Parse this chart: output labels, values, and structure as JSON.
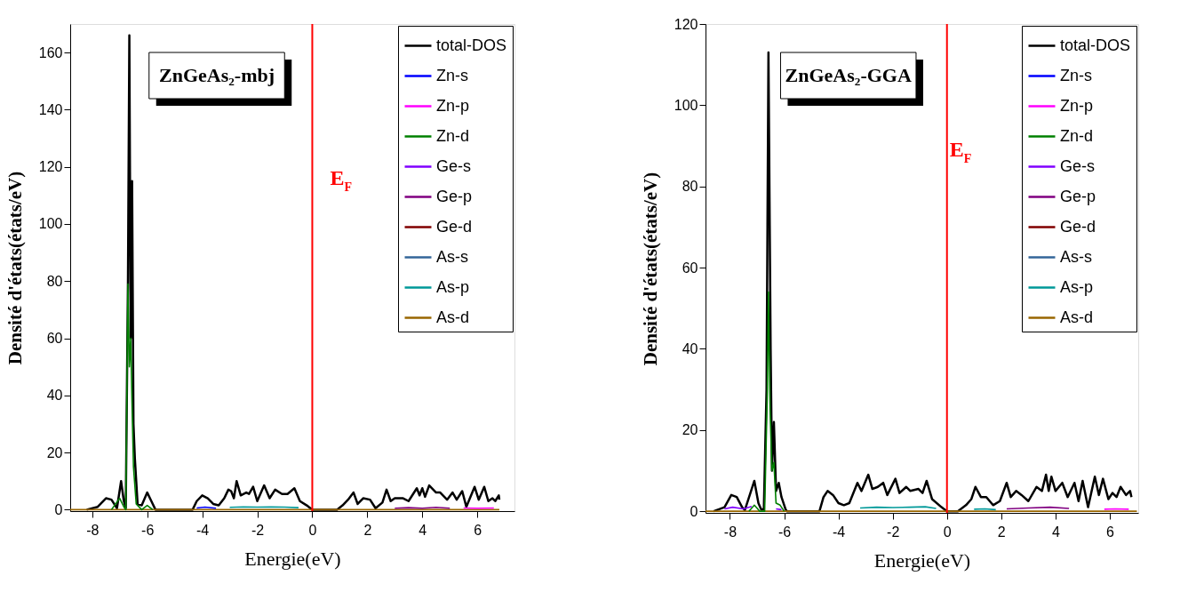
{
  "chart_data": [
    {
      "type": "line",
      "title": "ZnGeAs₂-mbj",
      "xlabel": "Energie(eV)",
      "ylabel": "Densité d'états(états/eV)",
      "xlim": [
        -8.8,
        7.35
      ],
      "ylim": [
        -0.5,
        170
      ],
      "xticks": [
        -8,
        -6,
        -4,
        -2,
        0,
        2,
        4,
        6
      ],
      "yticks": [
        0,
        20,
        40,
        60,
        80,
        100,
        120,
        140,
        160
      ],
      "grid": false,
      "legend": "top right",
      "line_style": "solid",
      "ref_lines": [
        {
          "axis": "x",
          "value": 0,
          "color": "#ff0000"
        }
      ],
      "annotations": [
        "E$_{F}$"
      ],
      "series": [
        {
          "name": "total-DOS",
          "color": "#000000",
          "x": [
            -8.2,
            -7.8,
            -7.5,
            -7.3,
            -7.1,
            -6.95,
            -6.85,
            -6.78,
            -6.7,
            -6.65,
            -6.6,
            -6.55,
            -6.5,
            -6.45,
            -6.35,
            -6.2,
            -6.0,
            -5.85,
            -5.7,
            -4.35,
            -4.2,
            -4.0,
            -3.8,
            -3.6,
            -3.4,
            -3.2,
            -3.05,
            -2.95,
            -2.85,
            -2.75,
            -2.6,
            -2.4,
            -2.3,
            -2.15,
            -2.0,
            -1.75,
            -1.55,
            -1.35,
            -1.1,
            -0.9,
            -0.65,
            -0.45,
            -0.2,
            0,
            0.9,
            1.1,
            1.3,
            1.5,
            1.65,
            1.85,
            2.1,
            2.3,
            2.55,
            2.7,
            2.85,
            3.0,
            3.3,
            3.5,
            3.8,
            3.9,
            4.0,
            4.1,
            4.25,
            4.5,
            4.65,
            4.9,
            5.1,
            5.25,
            5.45,
            5.6,
            5.9,
            6.05,
            6.25,
            6.4,
            6.55,
            6.65,
            6.78,
            6.8
          ],
          "values": [
            0,
            1,
            4,
            3.5,
            0.5,
            10,
            3,
            0.5,
            80,
            166,
            60,
            115,
            30,
            18,
            2,
            1.5,
            6,
            3,
            0,
            0,
            3,
            5,
            4,
            2,
            1.5,
            4,
            7,
            6.5,
            4,
            10,
            5,
            6,
            5.5,
            8,
            3,
            8.5,
            4,
            7,
            5.5,
            5.5,
            7.5,
            3,
            1.5,
            0,
            0,
            1.5,
            3.5,
            6,
            2,
            4,
            3.5,
            0.5,
            2.5,
            7,
            3,
            4,
            4,
            3,
            7.5,
            5,
            7.5,
            4.5,
            8.5,
            6,
            6,
            3.5,
            6,
            3.5,
            6.5,
            1,
            8,
            3.5,
            8,
            3,
            4,
            3,
            5,
            3.5
          ]
        },
        {
          "name": "Zn-s",
          "color": "#0000ff",
          "x": [
            -4.2,
            -3.9,
            -3.5
          ],
          "values": [
            0.6,
            0.9,
            0.5
          ]
        },
        {
          "name": "Zn-p",
          "color": "#ff00ff",
          "x": [
            5.5,
            6.0,
            6.6
          ],
          "values": [
            0.6,
            0.5,
            0.6
          ]
        },
        {
          "name": "Zn-d",
          "color": "#008000",
          "x": [
            -7.3,
            -7.0,
            -6.85,
            -6.78,
            -6.7,
            -6.65,
            -6.6,
            -6.55,
            -6.5,
            -6.4,
            -6.2,
            -6.0,
            -5.8
          ],
          "values": [
            0,
            4,
            1,
            0,
            79,
            50,
            60,
            36,
            15,
            2,
            0,
            1.5,
            0
          ]
        },
        {
          "name": "Ge-s",
          "color": "#8000ff"
        },
        {
          "name": "Ge-p",
          "color": "#800080",
          "x": [
            3,
            3.5,
            4,
            4.5,
            5
          ],
          "values": [
            0.5,
            0.7,
            0.5,
            0.8,
            0.5
          ]
        },
        {
          "name": "Ge-d",
          "color": "#800000"
        },
        {
          "name": "As-s",
          "color": "#336699"
        },
        {
          "name": "As-p",
          "color": "#009999",
          "x": [
            -3.0,
            -2.5,
            -2.0,
            -1.5,
            -1.0,
            -0.5
          ],
          "values": [
            0.8,
            1.0,
            0.9,
            1.0,
            0.9,
            0.7
          ]
        },
        {
          "name": "As-d",
          "color": "#996600",
          "x": [
            -8.8,
            6.8
          ],
          "values": [
            0,
            0
          ]
        }
      ]
    },
    {
      "type": "line",
      "title": "ZnGeAs₂-GGA",
      "xlabel": "Energie(eV)",
      "ylabel": "Densité d'états(états/eV)",
      "xlim": [
        -8.9,
        7.05
      ],
      "ylim": [
        -0.4,
        120
      ],
      "xticks": [
        -8,
        -6,
        -4,
        -2,
        0,
        2,
        4,
        6
      ],
      "yticks": [
        0,
        20,
        40,
        60,
        80,
        100,
        120
      ],
      "grid": false,
      "legend": "top right",
      "line_style": "solid",
      "ref_lines": [
        {
          "axis": "x",
          "value": 0,
          "color": "#ff0000"
        }
      ],
      "annotations": [
        "E$_{F}$"
      ],
      "series": [
        {
          "name": "total-DOS",
          "color": "#000000",
          "x": [
            -8.6,
            -8.2,
            -7.95,
            -7.75,
            -7.55,
            -7.45,
            -7.1,
            -6.95,
            -6.85,
            -6.75,
            -6.65,
            -6.58,
            -6.5,
            -6.45,
            -6.38,
            -6.3,
            -6.2,
            -6.1,
            -5.95,
            -5.9,
            -4.7,
            -4.55,
            -4.4,
            -4.2,
            -4.0,
            -3.8,
            -3.6,
            -3.3,
            -3.15,
            -2.9,
            -2.75,
            -2.55,
            -2.35,
            -2.2,
            -1.9,
            -1.75,
            -1.5,
            -1.35,
            -1.05,
            -0.9,
            -0.75,
            -0.55,
            -0.2,
            0,
            0.4,
            0.7,
            0.9,
            1.05,
            1.25,
            1.45,
            1.7,
            1.95,
            2.2,
            2.35,
            2.55,
            2.75,
            3.0,
            3.3,
            3.5,
            3.65,
            3.75,
            3.85,
            4.0,
            4.25,
            4.45,
            4.7,
            4.85,
            5.0,
            5.2,
            5.45,
            5.6,
            5.75,
            5.95,
            6.1,
            6.25,
            6.4,
            6.6,
            6.75,
            6.8
          ],
          "values": [
            0,
            1,
            4,
            3.5,
            1,
            0.3,
            7.5,
            2,
            0.5,
            0.5,
            30,
            113,
            40,
            10,
            22,
            5,
            7,
            3.5,
            0.5,
            0,
            0,
            3.5,
            5,
            4,
            2,
            1.5,
            2,
            7,
            5,
            9,
            5.5,
            6,
            7,
            4,
            8,
            4.5,
            6,
            5,
            5.5,
            4.5,
            7.5,
            3,
            1,
            0,
            0,
            1.5,
            3,
            6,
            3.5,
            3.5,
            1.5,
            2.5,
            7,
            3.5,
            5,
            4,
            2.5,
            6,
            5,
            9,
            5,
            8.5,
            5,
            7,
            3.5,
            7,
            2.5,
            7.5,
            1,
            8.5,
            4,
            8,
            3,
            4.5,
            3.5,
            6,
            4,
            5,
            3.5
          ]
        },
        {
          "name": "Zn-s",
          "color": "#0000ff"
        },
        {
          "name": "Zn-p",
          "color": "#ff00ff",
          "x": [
            5.8,
            6.2,
            6.7
          ],
          "values": [
            0.5,
            0.6,
            0.5
          ]
        },
        {
          "name": "Zn-d",
          "color": "#008000",
          "x": [
            -7.3,
            -7.1,
            -6.9,
            -6.72,
            -6.62,
            -6.58,
            -6.52,
            -6.45,
            -6.38,
            -6.3,
            -6.15,
            -6.0
          ],
          "values": [
            0,
            1.5,
            0,
            0,
            30,
            54,
            25,
            10,
            12,
            2,
            1.5,
            0
          ]
        },
        {
          "name": "Ge-s",
          "color": "#8000ff",
          "x": [
            -8.2,
            -7.9,
            -7.5,
            -7.2,
            -6.5,
            -6.3,
            -6.1
          ],
          "values": [
            0.6,
            1.0,
            0.6,
            1.2,
            null,
            0.6,
            0.4
          ]
        },
        {
          "name": "Ge-p",
          "color": "#800080",
          "x": [
            2.2,
            3.0,
            3.8,
            4.5
          ],
          "values": [
            0.6,
            0.8,
            1.0,
            0.7
          ]
        },
        {
          "name": "Ge-d",
          "color": "#800000"
        },
        {
          "name": "As-s",
          "color": "#336699"
        },
        {
          "name": "As-p",
          "color": "#009999",
          "x": [
            -3.2,
            -2.6,
            -2.0,
            -1.4,
            -0.8,
            -0.4,
            0.2,
            1.0,
            1.4,
            1.8
          ],
          "values": [
            0.8,
            1.0,
            0.9,
            1.0,
            1.1,
            0.7,
            null,
            0.5,
            0.6,
            0.4
          ]
        },
        {
          "name": "As-d",
          "color": "#996600",
          "x": [
            -8.9,
            7.0
          ],
          "values": [
            0,
            0
          ]
        }
      ]
    }
  ]
}
